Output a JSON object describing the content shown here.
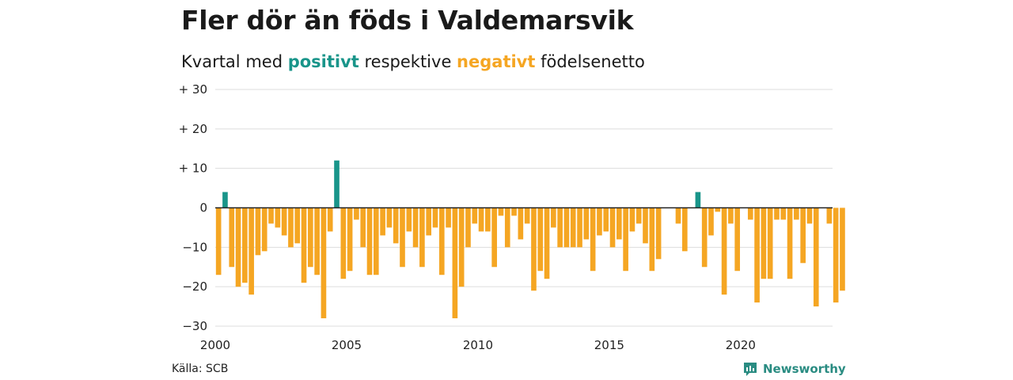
{
  "title": "Fler dör än föds i Valdemarsvik",
  "subtitle": {
    "prefix": "Kvartal med ",
    "positive_word": "positivt",
    "middle": " respektive ",
    "negative_word": "negativt",
    "suffix": " födelsenetto"
  },
  "source": "Källa: SCB",
  "brand": "Newsworthy",
  "colors": {
    "positive": "#19958a",
    "negative": "#f5a623",
    "grid": "#dddddd",
    "zero": "#222222"
  },
  "chart_data": {
    "type": "bar",
    "title": "Fler dör än föds i Valdemarsvik",
    "subtitle": "Kvartal med positivt respektive negativt födelsenetto",
    "xlabel": "",
    "ylabel": "",
    "x_start": 2000.125,
    "x_step": 0.25,
    "xlim": [
      2000,
      2023.5
    ],
    "ylim": [
      -30,
      30
    ],
    "yticks": [
      30,
      20,
      10,
      0,
      -10,
      -20,
      -30
    ],
    "ytick_labels": [
      "+ 30",
      "+ 20",
      "+ 10",
      "0",
      "−10",
      "−20",
      "−30"
    ],
    "xticks": [
      2000,
      2005,
      2010,
      2015,
      2020
    ],
    "xtick_labels": [
      "2000",
      "2005",
      "2010",
      "2015",
      "2020"
    ],
    "grid": true,
    "values": [
      -17,
      4,
      -15,
      -20,
      -19,
      -22,
      -12,
      -11,
      -4,
      -5,
      -7,
      -10,
      -9,
      -19,
      -15,
      -17,
      -28,
      -6,
      12,
      -18,
      -16,
      -3,
      -10,
      -17,
      -17,
      -7,
      -5,
      -9,
      -15,
      -6,
      -10,
      -15,
      -7,
      -5,
      -17,
      -5,
      -28,
      -20,
      -10,
      -4,
      -6,
      -6,
      -15,
      -2,
      -10,
      -2,
      -8,
      -4,
      -21,
      -16,
      -18,
      -5,
      -10,
      -10,
      -10,
      -10,
      -8,
      -16,
      -7,
      -6,
      -10,
      -8,
      -16,
      -6,
      -4,
      -9,
      -16,
      -13,
      0,
      0,
      -4,
      -11,
      0,
      4,
      -15,
      -7,
      -1,
      -22,
      -4,
      -16,
      0,
      -3,
      -24,
      -18,
      -18,
      -3,
      -3,
      -18,
      -3,
      -14,
      -4,
      -25,
      0,
      -4,
      -24,
      -21
    ]
  }
}
